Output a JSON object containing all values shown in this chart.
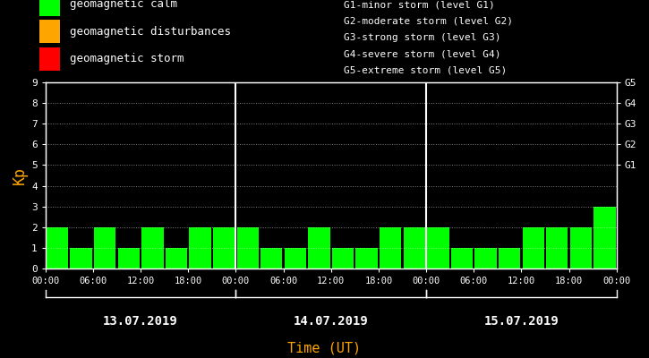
{
  "bg_color": "#000000",
  "bar_color_calm": "#00ff00",
  "bar_color_disturbance": "#ffa500",
  "bar_color_storm": "#ff0000",
  "white": "#ffffff",
  "orange": "#ffa500",
  "ylabel": "Kp",
  "xlabel": "Time (UT)",
  "ylim": [
    0,
    9
  ],
  "yticks": [
    0,
    1,
    2,
    3,
    4,
    5,
    6,
    7,
    8,
    9
  ],
  "right_labels": [
    "G1",
    "G2",
    "G3",
    "G4",
    "G5"
  ],
  "right_positions": [
    5,
    6,
    7,
    8,
    9
  ],
  "days": [
    "13.07.2019",
    "14.07.2019",
    "15.07.2019"
  ],
  "kp_values": [
    2,
    1,
    2,
    1,
    2,
    1,
    2,
    2,
    2,
    1,
    1,
    2,
    1,
    1,
    2,
    2,
    2,
    1,
    1,
    1,
    2,
    2,
    2,
    3
  ],
  "legend_labels": [
    "geomagnetic calm",
    "geomagnetic disturbances",
    "geomagnetic storm"
  ],
  "legend_colors": [
    "#00ff00",
    "#ffa500",
    "#ff0000"
  ],
  "storm_info": [
    "G1-minor storm (level G1)",
    "G2-moderate storm (level G2)",
    "G3-strong storm (level G3)",
    "G4-severe storm (level G4)",
    "G5-extreme storm (level G5)"
  ],
  "font": "monospace",
  "calm_max_kp": 3,
  "disturbance_min_kp": 4,
  "storm_min_kp": 5,
  "figwidth": 7.25,
  "figheight": 4.0,
  "dpi": 100
}
